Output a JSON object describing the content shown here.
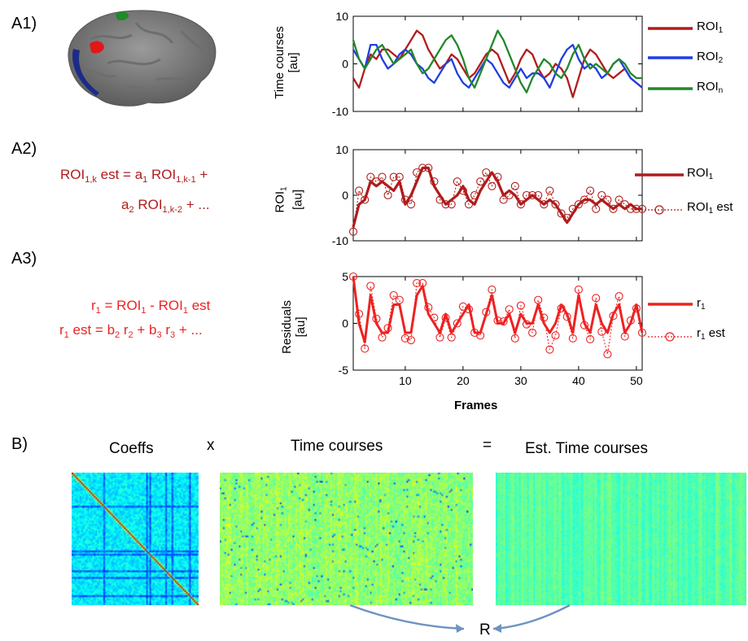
{
  "labels": {
    "a1": "A1)",
    "a2": "A2)",
    "a3": "A3)",
    "b": "B)"
  },
  "colors": {
    "roi1": "#b01c1c",
    "roi2": "#1f3fe0",
    "roin": "#22882a",
    "r1": "#ee2222",
    "arrow": "#6f93c0"
  },
  "icons": {
    "brain": "brain-surface-illustration"
  },
  "a1": {
    "ylabel_line1": "Time courses",
    "ylabel_line2": "[au]",
    "legend": [
      {
        "name": "ROI",
        "sub": "1"
      },
      {
        "name": "ROI",
        "sub": "2"
      },
      {
        "name": "ROI",
        "sub": "n"
      }
    ]
  },
  "a2": {
    "ylabel_main": "ROI",
    "ylabel_sub": "1",
    "ylabel_unit": "[au]",
    "legend": [
      {
        "name": "ROI",
        "sub": "1",
        "suffix": ""
      },
      {
        "name": "ROI",
        "sub": "1",
        "suffix": " est"
      }
    ],
    "eq_line1": {
      "a": "ROI",
      "a_sub": "1,k",
      "b": " est = a",
      "b_sub": "1",
      "c": " ROI",
      "c_sub": "1,k-1",
      "d": " +"
    },
    "eq_line2": {
      "a": "a",
      "a_sub": "2",
      "b": " ROI",
      "b_sub": "1,k-2",
      "c": " + ..."
    }
  },
  "a3": {
    "ylabel_line1": "Residuals",
    "ylabel_line2": "[au]",
    "xlabel": "Frames",
    "legend": [
      {
        "name": "r",
        "sub": "1",
        "suffix": ""
      },
      {
        "name": "r",
        "sub": "1",
        "suffix": " est"
      }
    ],
    "eq_line1": {
      "a": "r",
      "a_sub": "1",
      "b": " = ROI",
      "b_sub": "1",
      "c": " - ROI",
      "c_sub": "1",
      "d": " est"
    },
    "eq_line2": {
      "a": "r",
      "a_sub": "1",
      "b": " est = b",
      "b_sub": "2",
      "c": " r",
      "c_sub": "2",
      "d": " + b",
      "d_sub": "3",
      "e": " r",
      "e_sub": "3",
      "f": " + ..."
    }
  },
  "b": {
    "coeffs": "Coeffs",
    "times": "x",
    "timecourses": "Time courses",
    "equals": "=",
    "est": "Est. Time courses",
    "result": "R"
  },
  "chart_data": [
    {
      "type": "line",
      "id": "a1",
      "ylabel": "Time courses [au]",
      "ylim": [
        -10,
        10
      ],
      "yticks": [
        -10,
        0,
        10
      ],
      "xlim": [
        1,
        51
      ],
      "series": [
        {
          "name": "ROI1",
          "values": [
            -3,
            -5,
            -1,
            2,
            1,
            3,
            3,
            2,
            1,
            3,
            5,
            7,
            6,
            3,
            1,
            -1,
            0,
            2,
            1,
            -1,
            -3,
            -2,
            0,
            2,
            3,
            2,
            -1,
            -4,
            -2,
            1,
            3,
            2,
            -1,
            -3,
            -2,
            0,
            -1,
            -3,
            -7,
            -3,
            1,
            3,
            2,
            0,
            -2,
            -3,
            -2,
            -1,
            -3,
            -4,
            -5
          ]
        },
        {
          "name": "ROI2",
          "values": [
            3,
            1,
            -1,
            4,
            4,
            1,
            -1,
            0,
            2,
            3,
            2,
            0,
            -1,
            -3,
            -4,
            -2,
            0,
            1,
            -2,
            -4,
            -5,
            -3,
            -1,
            1,
            0,
            -2,
            -4,
            -5,
            -3,
            -1,
            -3,
            -2,
            -2,
            -3,
            -5,
            -2,
            1,
            3,
            4,
            1,
            -1,
            0,
            -1,
            -3,
            -2,
            0,
            1,
            -1,
            -3,
            -4,
            -5
          ]
        },
        {
          "name": "ROIn",
          "values": [
            5,
            1,
            -1,
            1,
            3,
            4,
            2,
            0,
            1,
            2,
            3,
            0,
            -2,
            -1,
            1,
            3,
            5,
            6,
            4,
            1,
            -3,
            -5,
            -2,
            1,
            4,
            7,
            5,
            2,
            -1,
            -4,
            -6,
            -3,
            -1,
            1,
            0,
            -2,
            -3,
            -1,
            2,
            4,
            1,
            -1,
            0,
            -1,
            -2,
            0,
            1,
            0,
            -2,
            -3,
            -3
          ]
        }
      ]
    },
    {
      "type": "line",
      "id": "a2",
      "ylabel": "ROI1 [au]",
      "ylim": [
        -10,
        10
      ],
      "yticks": [
        -10,
        0,
        10
      ],
      "xlim": [
        1,
        51
      ],
      "series": [
        {
          "name": "ROI1",
          "values": [
            -7,
            -2,
            -1,
            3,
            2,
            3,
            2,
            1,
            3,
            -2,
            0,
            3,
            6,
            6,
            2,
            0,
            -2,
            -1,
            0,
            2,
            -1,
            -2,
            1,
            3,
            5,
            3,
            0,
            1,
            0,
            -2,
            -1,
            0,
            -1,
            -2,
            -1,
            -2,
            -4,
            -6,
            -4,
            -2,
            -1,
            -1,
            -2,
            -1,
            -2,
            -3,
            -2,
            -3,
            -2,
            -3,
            -3
          ]
        },
        {
          "name": "ROI1 est",
          "values": [
            -8,
            1,
            -1,
            4,
            3,
            4,
            0,
            4,
            4,
            -1,
            -2,
            5,
            6,
            6,
            3,
            -1,
            -2,
            -2,
            3,
            1,
            -2,
            0,
            3,
            5,
            2,
            4,
            -1,
            0,
            2,
            -2,
            0,
            0,
            0,
            -2,
            1,
            -2,
            -4,
            -5,
            -3,
            -2,
            -1,
            1,
            -3,
            0,
            -1,
            -3,
            -1,
            -2,
            -3,
            -3,
            -3
          ]
        }
      ]
    },
    {
      "type": "line",
      "id": "a3",
      "ylabel": "Residuals [au]",
      "xlabel": "Frames",
      "ylim": [
        -5,
        5
      ],
      "yticks": [
        -5,
        0,
        5
      ],
      "xlim": [
        1,
        51
      ],
      "xticks": [
        10,
        20,
        30,
        40,
        50
      ],
      "series": [
        {
          "name": "r1",
          "values": [
            5,
            0,
            -2,
            3,
            0,
            -1,
            -1,
            2,
            2,
            -1,
            -1,
            3,
            4,
            1,
            0,
            -1,
            1,
            -1,
            0,
            1,
            2,
            -1,
            -1,
            1,
            3,
            0,
            0,
            1,
            -1,
            1,
            0,
            0,
            2,
            0,
            -1,
            0,
            2,
            1,
            -1,
            3,
            0,
            -1,
            2,
            0,
            -1,
            1,
            2,
            -1,
            0,
            2,
            -1
          ]
        },
        {
          "name": "r1 est",
          "values": [
            5,
            1,
            -2.7,
            4,
            0.5,
            -1.5,
            -0.5,
            3,
            2.5,
            -1.6,
            -1.8,
            4.3,
            4.3,
            1.7,
            0.6,
            -1.5,
            0.6,
            -1.5,
            0,
            1.8,
            1.5,
            -1,
            -1.3,
            1.2,
            3.6,
            0.3,
            0.2,
            1.5,
            -1.6,
            1.9,
            -0.1,
            -1,
            2.5,
            0.6,
            -2.8,
            -1.3,
            1.6,
            0.7,
            -1.6,
            3.6,
            -0.2,
            -1.7,
            2.7,
            -0.9,
            -3.3,
            0.8,
            2.9,
            -1.4,
            0.3,
            1.6,
            -1
          ]
        }
      ]
    },
    {
      "type": "heatmap",
      "id": "coeffs",
      "title": "Coeffs",
      "rows": 80,
      "cols": 80,
      "colormap": "jet",
      "diagonal": true
    },
    {
      "type": "heatmap",
      "id": "timecourses",
      "title": "Time courses",
      "rows": 80,
      "cols": 160,
      "colormap": "jet"
    },
    {
      "type": "heatmap",
      "id": "est",
      "title": "Est. Time courses",
      "rows": 80,
      "cols": 160,
      "colormap": "jet"
    }
  ]
}
